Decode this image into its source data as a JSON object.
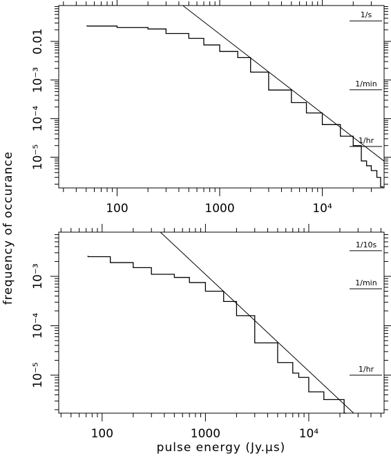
{
  "chart_data": [
    {
      "type": "line",
      "xscale": "log",
      "yscale": "log",
      "minor_ticks": true,
      "ylabel": "frequency of occurance",
      "xlim": [
        27,
        40000
      ],
      "ylim": [
        1.6e-06,
        0.085
      ],
      "xticks": [
        100,
        1000,
        {
          "value": 10000,
          "label": "10⁴"
        }
      ],
      "yticks": [
        {
          "value": 1e-05,
          "label": "10⁻⁵"
        },
        {
          "value": 0.0001,
          "label": "10⁻⁴"
        },
        {
          "value": 0.001,
          "label": "10⁻³"
        },
        0.01
      ],
      "series": [
        {
          "style": "step",
          "color": "#000000",
          "x": [
            51,
            100,
            200,
            300,
            500,
            700,
            1000,
            1500,
            2000,
            3000,
            5000,
            7000,
            10000,
            15000,
            20000,
            24000,
            27000,
            30000,
            34000,
            37000,
            39500
          ],
          "values": [
            0.026,
            0.025,
            0.023,
            0.021,
            0.016,
            0.012,
            0.0081,
            0.0055,
            0.0038,
            0.0016,
            0.00055,
            0.00026,
            0.00014,
            7e-05,
            3.5e-05,
            2e-05,
            8e-06,
            6e-06,
            4.5e-06,
            3e-06,
            1.7e-06
          ]
        },
        {
          "style": "line",
          "color": "#000000",
          "x": [
            437,
            39800
          ],
          "values": [
            0.085,
            8e-06
          ]
        }
      ],
      "annotations": [
        {
          "text": "1/s",
          "y": 0.034
        },
        {
          "text": "1/min",
          "y": 0.00056
        },
        {
          "text": "1/hr",
          "y": 1.9e-05
        }
      ]
    },
    {
      "type": "line",
      "xscale": "log",
      "yscale": "log",
      "minor_ticks": true,
      "xlabel": "pulse energy (Jy.μs)",
      "xlim": [
        38,
        53600
      ],
      "ylim": [
        1.7e-06,
        0.00785
      ],
      "xticks": [
        100,
        1000,
        {
          "value": 10000,
          "label": "10⁴"
        }
      ],
      "yticks": [
        {
          "value": 1e-05,
          "label": "10⁻⁵"
        },
        {
          "value": 0.0001,
          "label": "10⁻⁴"
        },
        {
          "value": 0.001,
          "label": "10⁻³"
        }
      ],
      "series": [
        {
          "style": "step",
          "color": "#000000",
          "x": [
            73,
            120,
            200,
            300,
            500,
            700,
            1000,
            1500,
            2000,
            3000,
            5000,
            7000,
            8000,
            10000,
            14000,
            17000,
            22000,
            23000
          ],
          "values": [
            0.0026,
            0.0025,
            0.0019,
            0.0015,
            0.0011,
            0.00095,
            0.00075,
            0.0005,
            0.00031,
            0.00016,
            4.5e-05,
            1.8e-05,
            1.1e-05,
            9e-06,
            4.6e-06,
            3.2e-06,
            3.2e-06,
            1.7e-06
          ]
        },
        {
          "style": "line",
          "color": "#000000",
          "x": [
            366,
            27200
          ],
          "values": [
            0.00785,
            1.7e-06
          ]
        }
      ],
      "annotations": [
        {
          "text": "1/10s",
          "y": 0.0033
        },
        {
          "text": "1/min",
          "y": 0.00056
        },
        {
          "text": "1/hr",
          "y": 1e-05
        }
      ]
    }
  ]
}
